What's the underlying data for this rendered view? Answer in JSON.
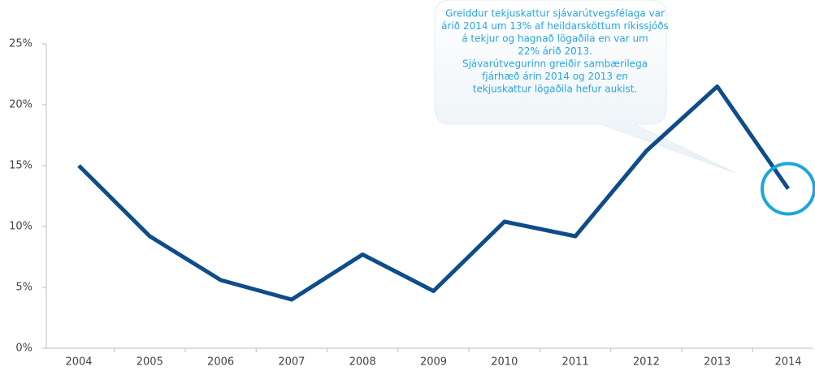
{
  "chart_data": {
    "type": "line",
    "categories": [
      "2004",
      "2005",
      "2006",
      "2007",
      "2008",
      "2009",
      "2010",
      "2011",
      "2012",
      "2013",
      "2014"
    ],
    "series": [
      {
        "name": null,
        "color": "#0f4c8a",
        "values": [
          15,
          9.2,
          5.6,
          4.0,
          7.7,
          4.7,
          10.4,
          9.2,
          16.2,
          21.5,
          13.1
        ]
      }
    ],
    "ylim": [
      0,
      25
    ],
    "yticks": [
      {
        "value": 0,
        "label": "0%"
      },
      {
        "value": 5,
        "label": "5%"
      },
      {
        "value": 10,
        "label": "10%"
      },
      {
        "value": 15,
        "label": "15%"
      },
      {
        "value": 20,
        "label": "20%"
      },
      {
        "value": 25,
        "label": "25%"
      }
    ],
    "grid": false,
    "annotation": [
      "Greiddur tekjuskattur sjávarútvegsfélaga var",
      "árið 2014 um 13% af heildarsköttum ríkissjóðs",
      "á tekjur og hagnað lögaðila en var um",
      "22% árið 2013.",
      "Sjávarútvegurinn greiðir sambærilega",
      "fjárhæð árin 2014 og 2013 en",
      "tekjuskattur lögaðila hefur aukist."
    ]
  }
}
